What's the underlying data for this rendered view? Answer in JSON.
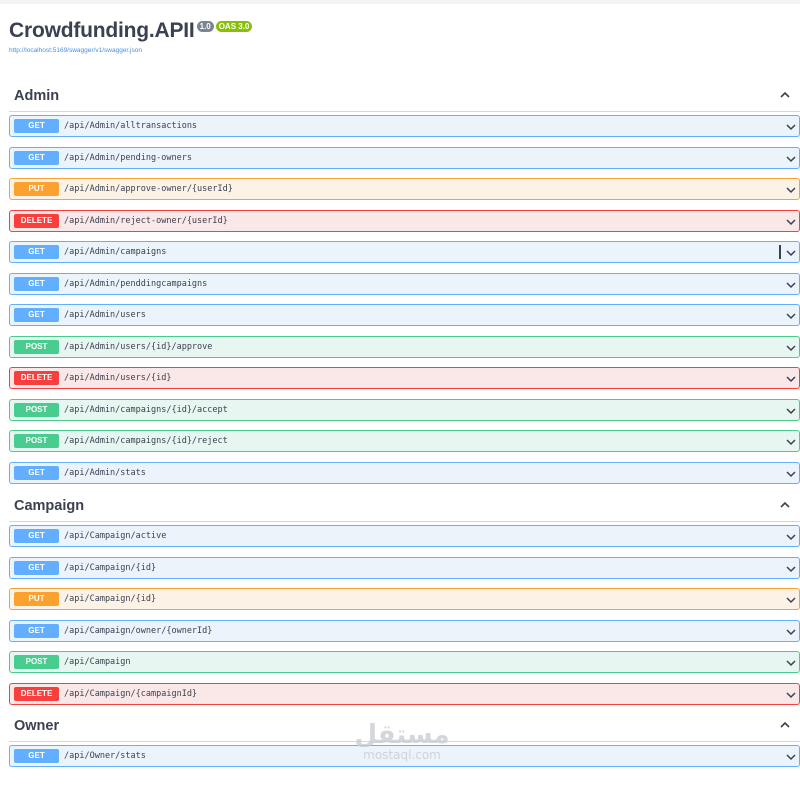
{
  "info": {
    "title": "Crowdfunding.APII",
    "version_badge": "1.0",
    "oas_badge": "OAS 3.0",
    "spec_url": "http://localhost:5169/swagger/v1/swagger.json"
  },
  "tags": [
    {
      "name": "Admin",
      "operations": [
        {
          "method": "GET",
          "path": "/api/Admin/alltransactions"
        },
        {
          "method": "GET",
          "path": "/api/Admin/pending-owners"
        },
        {
          "method": "PUT",
          "path": "/api/Admin/approve-owner/{userId}"
        },
        {
          "method": "DELETE",
          "path": "/api/Admin/reject-owner/{userId}"
        },
        {
          "method": "GET",
          "path": "/api/Admin/campaigns"
        },
        {
          "method": "GET",
          "path": "/api/Admin/penddingcampaigns"
        },
        {
          "method": "GET",
          "path": "/api/Admin/users"
        },
        {
          "method": "POST",
          "path": "/api/Admin/users/{id}/approve"
        },
        {
          "method": "DELETE",
          "path": "/api/Admin/users/{id}"
        },
        {
          "method": "POST",
          "path": "/api/Admin/campaigns/{id}/accept"
        },
        {
          "method": "POST",
          "path": "/api/Admin/campaigns/{id}/reject"
        },
        {
          "method": "GET",
          "path": "/api/Admin/stats"
        }
      ]
    },
    {
      "name": "Campaign",
      "operations": [
        {
          "method": "GET",
          "path": "/api/Campaign/active"
        },
        {
          "method": "GET",
          "path": "/api/Campaign/{id}"
        },
        {
          "method": "PUT",
          "path": "/api/Campaign/{id}"
        },
        {
          "method": "GET",
          "path": "/api/Campaign/owner/{ownerId}"
        },
        {
          "method": "POST",
          "path": "/api/Campaign"
        },
        {
          "method": "DELETE",
          "path": "/api/Campaign/{campaignId}"
        }
      ]
    },
    {
      "name": "Owner",
      "operations": [
        {
          "method": "GET",
          "path": "/api/Owner/stats"
        }
      ]
    }
  ],
  "watermark": {
    "arabic": "مستقل",
    "latin": "mostaql.com"
  },
  "colors": {
    "get": "#61affe",
    "put": "#fca130",
    "delete": "#f93e3e",
    "post": "#49cc90"
  }
}
